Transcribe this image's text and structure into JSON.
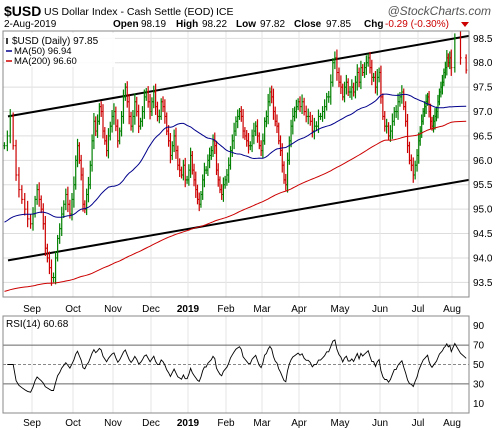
{
  "header": {
    "symbol": "$USD",
    "name": "US Dollar Index - Cash Settle (EOD)",
    "exchange": "ICE",
    "date": "2-Aug-2019",
    "watermark": "@StockCharts.com",
    "ohlc": [
      {
        "label": "Open",
        "value": "98.19"
      },
      {
        "label": "High",
        "value": "98.22"
      },
      {
        "label": "Low",
        "value": "97.82"
      },
      {
        "label": "Close",
        "value": "97.85"
      }
    ],
    "chg_label": "Chg",
    "chg_value": "-0.29 (-0.30%)"
  },
  "legend": [
    {
      "text": "$USD (Daily) 97.85",
      "color": "#000000"
    },
    {
      "text": "MA(50) 96.94",
      "color": "#00008b"
    },
    {
      "text": "MA(200) 96.60",
      "color": "#cc0000"
    }
  ],
  "rsi_legend": "RSI(14) 60.68",
  "colors": {
    "up": "#008000",
    "down": "#cc0000",
    "ma50": "#00008b",
    "ma200": "#cc0000",
    "trendline": "#000000",
    "rsi_line": "#000000"
  },
  "chart_data": {
    "type": "ohlc-bar",
    "title": "$USD US Dollar Index - Cash Settle (EOD) ICE",
    "x_tick_labels": [
      "Sep",
      "Oct",
      "Nov",
      "Dec",
      "2019",
      "Feb",
      "Mar",
      "Apr",
      "May",
      "Jun",
      "Jul",
      "Aug"
    ],
    "y_ticks": [
      93.5,
      94.0,
      94.5,
      95.0,
      95.5,
      96.0,
      96.5,
      97.0,
      97.5,
      98.0,
      98.5
    ],
    "ylim": [
      93.2,
      98.65
    ],
    "close_series": [
      {
        "month": "Aug",
        "values": [
          96.3,
          96.5,
          96.9,
          96.3,
          95.7,
          95.4,
          95.2,
          95.0,
          94.8,
          94.7
        ]
      },
      {
        "month": "Sep",
        "values": [
          94.9,
          95.2,
          95.4,
          95.2,
          95.0,
          94.7,
          94.2,
          94.0,
          93.8,
          93.6,
          93.6,
          94.0,
          94.4,
          94.6,
          94.9,
          95.1,
          95.3,
          95.1,
          94.9,
          95.2
        ]
      },
      {
        "month": "Oct",
        "values": [
          95.5,
          96.0,
          96.3,
          96.0,
          95.7,
          95.1,
          95.0,
          95.3,
          95.5,
          95.9,
          96.4,
          96.8,
          96.6,
          96.8,
          97.1,
          97.0,
          96.6,
          96.4,
          96.2,
          96.5,
          96.7,
          96.9
        ]
      },
      {
        "month": "Nov",
        "values": [
          97.0,
          96.7,
          96.4,
          96.6,
          96.9,
          97.3,
          97.5,
          97.2,
          96.9,
          96.7,
          96.9,
          97.2,
          97.0,
          96.7,
          96.8,
          97.0,
          97.3,
          97.4,
          97.2,
          97.0
        ]
      },
      {
        "month": "Dec",
        "values": [
          97.2,
          97.4,
          97.1,
          96.9,
          96.9,
          97.2,
          97.1,
          96.9,
          96.6,
          96.4,
          96.1,
          96.3,
          96.5,
          96.2,
          95.9,
          95.8,
          95.7,
          95.9,
          95.6,
          95.6
        ]
      },
      {
        "month": "Jan",
        "values": [
          95.8,
          96.1,
          95.8,
          95.6,
          95.4,
          95.2,
          95.1,
          95.3,
          95.6,
          95.8,
          95.8,
          96.0,
          96.1,
          96.2,
          96.4,
          96.3,
          95.8,
          95.6,
          95.4,
          95.3,
          95.5,
          95.6
        ]
      },
      {
        "month": "Feb",
        "values": [
          95.7,
          95.9,
          96.2,
          96.4,
          96.6,
          96.8,
          96.9,
          97.0,
          96.9,
          96.6,
          96.5,
          96.4,
          96.3,
          96.3,
          96.5,
          96.6,
          96.7,
          96.5,
          96.3,
          96.2
        ]
      },
      {
        "month": "Mar",
        "values": [
          96.4,
          96.8,
          96.9,
          97.2,
          97.4,
          97.3,
          97.0,
          96.8,
          96.7,
          96.4,
          96.2,
          95.9,
          95.6,
          95.5,
          96.0,
          96.4,
          96.7,
          96.9,
          97.0,
          97.1,
          97.2
        ]
      },
      {
        "month": "Apr",
        "values": [
          97.1,
          97.2,
          97.0,
          96.9,
          96.9,
          96.8,
          96.6,
          96.7,
          96.7,
          96.9,
          96.9,
          97.0,
          97.1,
          97.3,
          97.3,
          97.6,
          98.0,
          98.1,
          97.8,
          97.6
        ]
      },
      {
        "month": "May",
        "values": [
          97.5,
          97.3,
          97.5,
          97.6,
          97.4,
          97.4,
          97.5,
          97.4,
          97.6,
          97.8,
          97.6,
          97.9,
          97.8,
          97.9,
          98.0,
          98.1,
          97.9,
          97.7,
          97.7,
          97.5,
          97.7,
          97.8
        ]
      },
      {
        "month": "Jun",
        "values": [
          97.3,
          96.9,
          96.7,
          96.7,
          96.5,
          96.6,
          96.8,
          97.0,
          97.0,
          97.2,
          97.3,
          97.4,
          97.1,
          96.8,
          96.3,
          96.0,
          95.9,
          95.7,
          95.9,
          96.1
        ]
      },
      {
        "month": "Jul",
        "values": [
          96.4,
          96.6,
          96.8,
          97.0,
          97.1,
          97.2,
          97.3,
          97.0,
          96.8,
          96.7,
          96.8,
          96.9,
          97.0,
          97.2,
          97.4,
          97.5,
          97.6,
          97.8,
          97.9,
          98.1,
          98.0,
          98.1,
          97.9
        ]
      },
      {
        "month": "Aug",
        "values": [
          98.5,
          98.1,
          97.85
        ]
      }
    ],
    "ma50": {
      "label": "MA(50)",
      "last": 96.94
    },
    "ma200": {
      "label": "MA(200)",
      "last": 96.6
    },
    "rsi": {
      "label": "RSI(14)",
      "last": 60.68,
      "y_ticks": [
        10,
        30,
        50,
        70,
        90
      ],
      "ylim": [
        0,
        100
      ],
      "reference_lines": [
        70,
        50,
        30
      ]
    },
    "trendlines": [
      {
        "role": "upper channel",
        "from": {
          "month": "Aug 2018",
          "price": 96.9
        },
        "to": {
          "month": "Aug 2019",
          "price": 98.55
        }
      },
      {
        "role": "lower channel",
        "from": {
          "month": "Aug 2018",
          "price": 93.95
        },
        "to": {
          "month": "Aug 2019",
          "price": 95.6
        }
      }
    ]
  }
}
